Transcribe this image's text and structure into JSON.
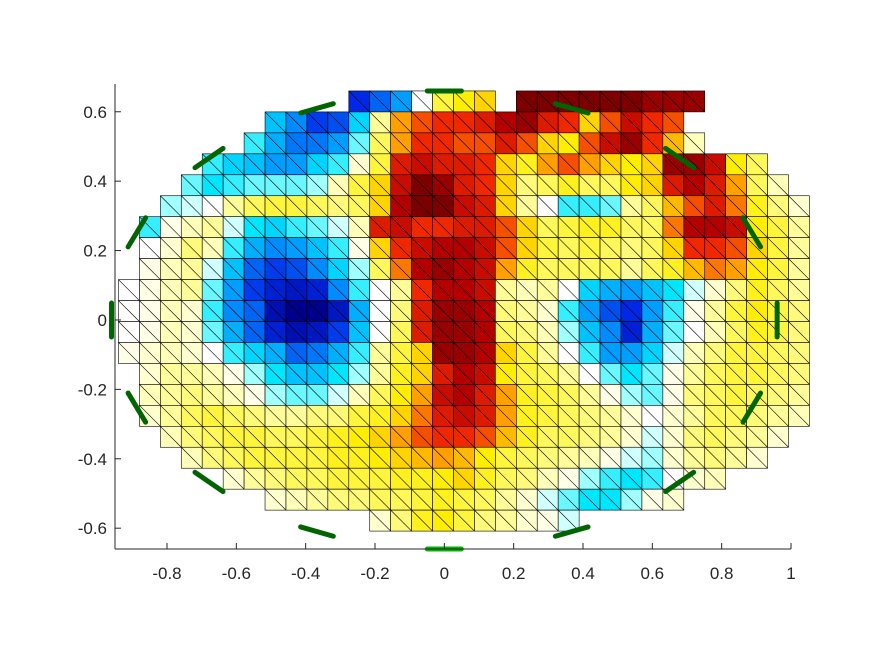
{
  "chart_data": {
    "type": "heatmap",
    "title": "",
    "xlabel": "",
    "ylabel": "",
    "xlim": [
      -0.95,
      1.0
    ],
    "ylim": [
      -0.66,
      0.68
    ],
    "grid": false,
    "legend": "none",
    "x_ticks": [
      -0.8,
      -0.6,
      -0.4,
      -0.2,
      0,
      0.2,
      0.4,
      0.6,
      0.8,
      1
    ],
    "x_tick_labels": [
      "-0.8",
      "-0.6",
      "-0.4",
      "-0.2",
      "0",
      "0.2",
      "0.4",
      "0.6",
      "0.8",
      "1"
    ],
    "y_ticks": [
      0.6,
      0.4,
      0.2,
      0,
      -0.2,
      -0.4,
      -0.6
    ],
    "y_tick_labels": [
      "0.6",
      "0.4",
      "0.2",
      "0",
      "-0.2",
      "-0.4",
      "-0.6"
    ],
    "mesh": {
      "element": "triangular grid, each square cell split by a diagonal",
      "x_start": -0.94,
      "y_start": 0.66,
      "cell": 0.0604,
      "colormap": "jet-like diverging: dark blue (negative) → cyan → white (zero) → yellow → red → dark red (positive)",
      "rows": [
        {
          "c0": 11,
          "v": [
            -0.75,
            -0.6,
            -0.45,
            0.0,
            0.35,
            0.45,
            0.5,
            -9,
            1.0,
            1.0,
            1.0,
            1.0,
            1.0,
            1.0,
            0.95,
            0.95,
            0.95
          ]
        },
        {
          "c0": 7,
          "v": [
            -0.35,
            -0.5,
            -0.7,
            -0.65,
            -0.3,
            0.2,
            0.6,
            0.7,
            0.75,
            0.75,
            0.8,
            0.9,
            0.95,
            0.8,
            0.75,
            0.5,
            0.7,
            0.85,
            0.75,
            0.7
          ]
        },
        {
          "c0": 6,
          "v": [
            -0.2,
            -0.4,
            -0.55,
            -0.55,
            -0.45,
            -0.15,
            0.3,
            0.6,
            0.75,
            0.75,
            0.7,
            0.7,
            0.8,
            0.7,
            0.5,
            0.45,
            0.7,
            0.85,
            0.95,
            0.75,
            0.55,
            0.15
          ]
        },
        {
          "c0": 4,
          "v": [
            -0.2,
            -0.3,
            -0.35,
            -0.45,
            -0.45,
            -0.3,
            -0.2,
            0.1,
            0.35,
            0.8,
            0.85,
            0.8,
            0.8,
            0.75,
            0.5,
            0.4,
            0.6,
            0.7,
            0.6,
            0.5,
            0.45,
            0.5,
            0.95,
            0.95,
            0.85,
            0.45,
            0.3
          ]
        },
        {
          "c0": 3,
          "v": [
            -0.15,
            -0.25,
            -0.2,
            -0.15,
            -0.15,
            -0.15,
            -0.1,
            0.15,
            0.35,
            0.5,
            0.85,
            1.0,
            0.95,
            0.8,
            0.75,
            0.5,
            0.25,
            0.3,
            0.4,
            0.3,
            0.3,
            0.45,
            0.5,
            0.8,
            0.9,
            0.8,
            0.6,
            0.3,
            0.15
          ]
        },
        {
          "c0": 2,
          "v": [
            -0.1,
            -0.05,
            0.0,
            0.2,
            0.3,
            0.35,
            0.35,
            0.3,
            0.25,
            0.3,
            0.5,
            0.9,
            1.0,
            1.0,
            0.85,
            0.8,
            0.5,
            0.2,
            0.0,
            -0.2,
            -0.2,
            -0.15,
            0.2,
            0.3,
            0.55,
            0.7,
            0.8,
            0.65,
            0.4,
            0.25,
            0.1
          ]
        },
        {
          "c0": 1,
          "v": [
            -0.2,
            0.05,
            0.15,
            0.2,
            -0.05,
            -0.25,
            -0.3,
            -0.2,
            -0.15,
            -0.05,
            0.15,
            0.8,
            0.85,
            0.75,
            0.75,
            0.8,
            0.8,
            0.7,
            0.5,
            0.3,
            0.35,
            0.4,
            0.4,
            0.3,
            0.3,
            0.65,
            0.9,
            0.9,
            0.85,
            0.45,
            0.35,
            0.2
          ]
        },
        {
          "c0": 1,
          "v": [
            0.0,
            0.1,
            0.25,
            0.15,
            -0.2,
            -0.4,
            -0.5,
            -0.45,
            -0.35,
            -0.2,
            0.05,
            0.5,
            0.75,
            0.85,
            0.9,
            0.9,
            0.85,
            0.7,
            0.5,
            0.35,
            0.3,
            0.35,
            0.3,
            0.25,
            0.3,
            0.5,
            0.75,
            0.75,
            0.7,
            0.5,
            0.35,
            0.2
          ]
        },
        {
          "c0": 1,
          "v": [
            0.05,
            0.15,
            0.2,
            -0.05,
            -0.35,
            -0.6,
            -0.7,
            -0.65,
            -0.5,
            -0.3,
            -0.1,
            0.3,
            0.65,
            0.9,
            0.95,
            0.9,
            0.85,
            0.6,
            0.4,
            0.3,
            0.3,
            0.3,
            0.3,
            0.2,
            0.3,
            0.4,
            0.55,
            0.65,
            0.6,
            0.45,
            0.35,
            0.2
          ]
        },
        {
          "c0": 0,
          "v": [
            0.0,
            0.05,
            0.15,
            0.2,
            -0.15,
            -0.45,
            -0.7,
            -0.8,
            -0.85,
            -0.8,
            -0.5,
            -0.2,
            0.0,
            0.2,
            0.75,
            0.9,
            0.9,
            0.85,
            0.2,
            0.15,
            0.2,
            0.0,
            -0.3,
            -0.4,
            -0.45,
            -0.35,
            -0.25,
            -0.05,
            0.1,
            0.25,
            0.4,
            0.3,
            0.2
          ]
        },
        {
          "c0": 0,
          "v": [
            0.0,
            0.05,
            0.15,
            0.1,
            -0.2,
            -0.5,
            -0.6,
            -0.9,
            -1.0,
            -1.0,
            -0.85,
            -0.4,
            0.0,
            0.25,
            0.8,
            0.95,
            0.95,
            0.9,
            0.25,
            0.2,
            0.1,
            -0.2,
            -0.45,
            -0.65,
            -0.75,
            -0.45,
            -0.2,
            0.05,
            0.2,
            0.35,
            0.45,
            0.35,
            0.25
          ]
        },
        {
          "c0": 0,
          "v": [
            0.0,
            0.05,
            0.15,
            0.1,
            -0.15,
            -0.4,
            -0.6,
            -0.8,
            -0.9,
            -0.85,
            -0.7,
            -0.35,
            0.0,
            0.3,
            0.8,
            0.95,
            0.95,
            0.9,
            0.3,
            0.25,
            0.15,
            -0.1,
            -0.35,
            -0.5,
            -0.8,
            -0.4,
            -0.15,
            0.0,
            0.15,
            0.3,
            0.4,
            0.35,
            0.25
          ]
        },
        {
          "c0": 0,
          "v": [
            0.05,
            0.1,
            0.15,
            0.1,
            0.0,
            -0.2,
            -0.3,
            -0.4,
            -0.6,
            -0.55,
            -0.4,
            -0.2,
            0.2,
            0.35,
            0.5,
            0.95,
            0.95,
            0.9,
            0.5,
            0.35,
            0.2,
            0.0,
            -0.2,
            -0.45,
            -0.45,
            -0.3,
            -0.05,
            0.15,
            0.25,
            0.35,
            0.35,
            0.3,
            0.25
          ]
        },
        {
          "c0": 1,
          "v": [
            0.1,
            0.2,
            0.2,
            0.15,
            0.05,
            -0.1,
            -0.25,
            -0.35,
            -0.35,
            -0.25,
            -0.1,
            0.2,
            0.4,
            0.5,
            0.8,
            0.9,
            0.85,
            0.45,
            0.35,
            0.3,
            0.2,
            0.0,
            -0.15,
            -0.25,
            -0.15,
            0.05,
            0.2,
            0.3,
            0.35,
            0.35,
            0.3,
            0.25
          ]
        },
        {
          "c0": 1,
          "v": [
            0.15,
            0.2,
            0.25,
            0.2,
            0.15,
            0.05,
            -0.1,
            -0.15,
            -0.15,
            -0.05,
            0.15,
            0.3,
            0.45,
            0.6,
            0.85,
            0.9,
            0.8,
            0.6,
            0.4,
            0.35,
            0.3,
            0.2,
            0.05,
            -0.1,
            -0.15,
            0.05,
            0.25,
            0.3,
            0.35,
            0.3,
            0.25,
            0.2
          ]
        },
        {
          "c0": 1,
          "v": [
            0.1,
            0.2,
            0.3,
            0.35,
            0.3,
            0.25,
            0.2,
            0.2,
            0.25,
            0.25,
            0.35,
            0.4,
            0.5,
            0.65,
            0.8,
            0.85,
            0.8,
            0.6,
            0.4,
            0.35,
            0.3,
            0.25,
            0.2,
            0.1,
            0.0,
            0.1,
            0.2,
            0.3,
            0.3,
            0.25,
            0.2,
            0.15
          ]
        },
        {
          "c0": 2,
          "v": [
            0.15,
            0.25,
            0.3,
            0.35,
            0.35,
            0.3,
            0.3,
            0.35,
            0.4,
            0.45,
            0.5,
            0.6,
            0.7,
            0.75,
            0.75,
            0.7,
            0.55,
            0.4,
            0.3,
            0.3,
            0.25,
            0.2,
            0.1,
            -0.05,
            0.1,
            0.25,
            0.3,
            0.25,
            0.2,
            0.1
          ]
        },
        {
          "c0": 3,
          "v": [
            0.15,
            0.25,
            0.3,
            0.35,
            0.35,
            0.35,
            0.35,
            0.4,
            0.4,
            0.45,
            0.5,
            0.55,
            0.6,
            0.55,
            0.45,
            0.35,
            0.3,
            0.25,
            0.2,
            0.15,
            0.05,
            -0.05,
            -0.1,
            0.1,
            0.2,
            0.25,
            0.2,
            0.1
          ]
        },
        {
          "c0": 5,
          "v": [
            0.1,
            0.2,
            0.25,
            0.3,
            0.3,
            0.35,
            0.35,
            0.35,
            0.4,
            0.4,
            0.45,
            0.5,
            0.4,
            0.3,
            0.25,
            0.15,
            0.05,
            -0.1,
            -0.2,
            -0.25,
            -0.2,
            0.0,
            0.1,
            0.15
          ]
        },
        {
          "c0": 7,
          "v": [
            0.1,
            0.15,
            0.2,
            0.25,
            0.25,
            0.3,
            0.3,
            0.35,
            0.4,
            0.35,
            0.3,
            0.2,
            0.1,
            -0.05,
            -0.15,
            -0.25,
            -0.25,
            -0.1,
            0.05,
            0.1
          ]
        },
        {
          "c0": 12,
          "v": [
            0.1,
            0.25,
            0.4,
            0.45,
            0.35,
            0.25,
            0.2,
            0.1,
            0.05,
            -0.05
          ]
        }
      ]
    },
    "electrodes": {
      "count": 16,
      "color": "#006400",
      "active_color": "#00b400",
      "radius_x": 0.96,
      "radius_y": 0.66,
      "center_x": 0.0,
      "center_y": 0.0,
      "active_index": 0
    }
  }
}
